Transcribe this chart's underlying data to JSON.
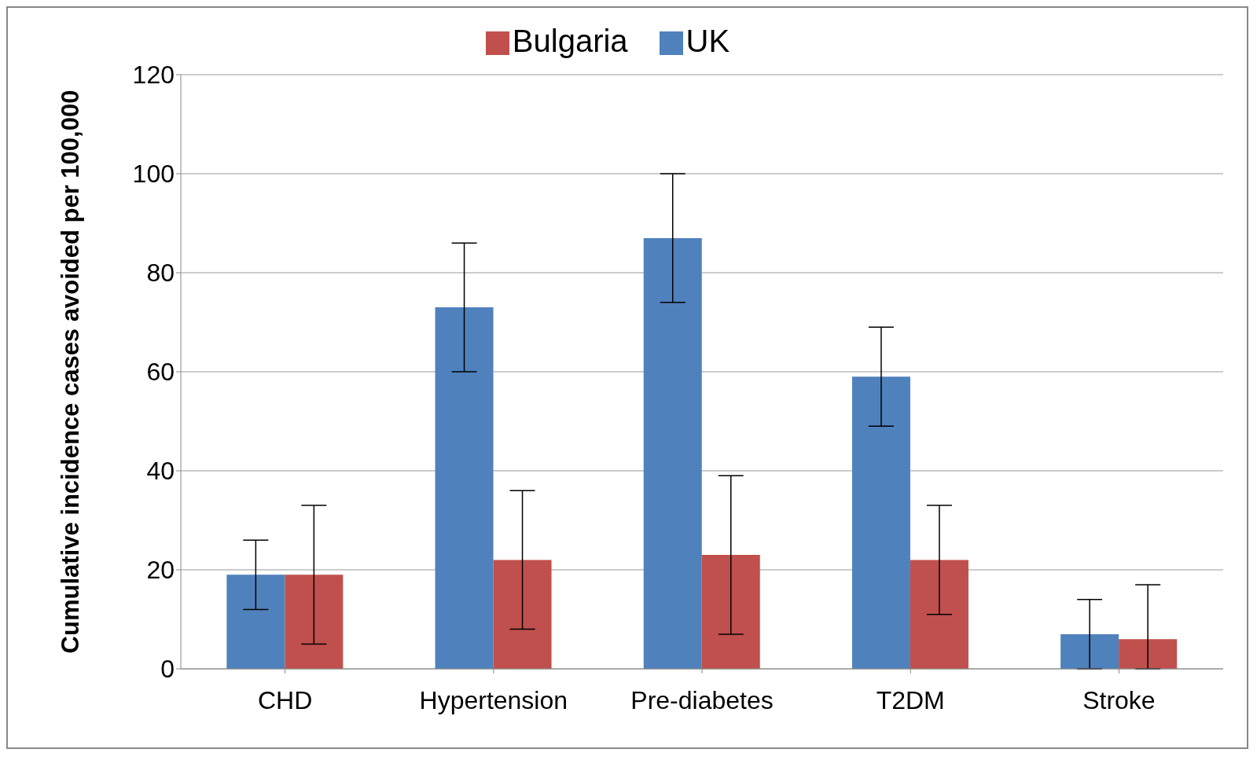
{
  "chart_data": {
    "type": "bar",
    "ylabel": "Cumulative incidence  cases avoided per 100,000",
    "categories": [
      "CHD",
      "Hypertension",
      "Pre-diabetes",
      "T2DM",
      "Stroke"
    ],
    "series": [
      {
        "name": "UK",
        "color": "#4f81bd",
        "values": [
          19,
          73,
          87,
          59,
          7
        ],
        "errors": [
          [
            12,
            26
          ],
          [
            60,
            86
          ],
          [
            74,
            100
          ],
          [
            49,
            69
          ],
          [
            0,
            14
          ]
        ]
      },
      {
        "name": "Bulgaria",
        "color": "#c0504d",
        "values": [
          19,
          22,
          23,
          22,
          6
        ],
        "errors": [
          [
            5,
            33
          ],
          [
            8,
            36
          ],
          [
            7,
            39
          ],
          [
            11,
            33
          ],
          [
            0,
            17
          ]
        ]
      }
    ],
    "ylim": [
      0,
      120
    ],
    "yticks": [
      0,
      20,
      40,
      60,
      80,
      100,
      120
    ],
    "grid": "y",
    "legend": "top"
  }
}
